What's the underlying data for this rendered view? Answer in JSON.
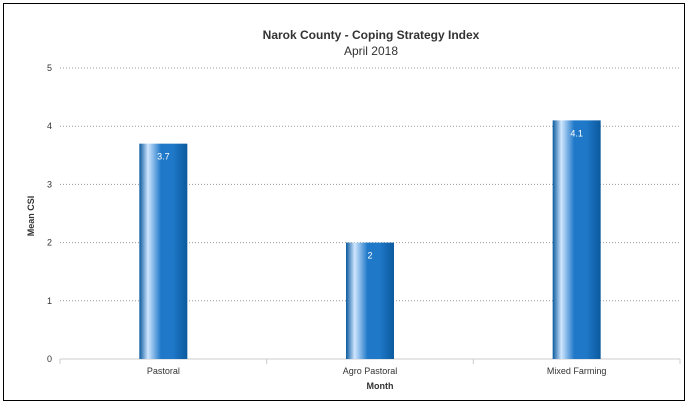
{
  "chart_data": {
    "type": "bar",
    "title": "Narok County - Coping Strategy Index",
    "subtitle": "April 2018",
    "xlabel": "Month",
    "ylabel": "Mean CSI",
    "categories": [
      "Pastoral",
      "Agro Pastoral",
      "Mixed Farming"
    ],
    "values": [
      3.7,
      2,
      4.1
    ],
    "data_labels": [
      "3.7",
      "2",
      "4.1"
    ],
    "y_ticks": [
      "0",
      "1",
      "2",
      "3",
      "4",
      "5"
    ],
    "ylim": [
      0,
      5
    ],
    "grid": true,
    "legend": "none",
    "colors": {
      "bar_dark": "#0b5a9e",
      "bar_mid": "#1f78c8",
      "bar_light": "#cfe6ff",
      "gridline": "#999999",
      "axis": "#cccccc",
      "text": "#333333",
      "data_label": "#ffffff"
    }
  }
}
